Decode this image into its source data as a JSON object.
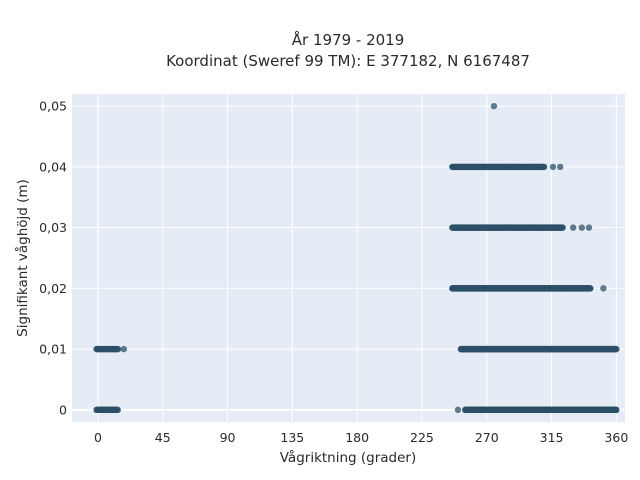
{
  "chart_data": {
    "type": "scatter",
    "title_line1": "År 1979 - 2019",
    "title_line2": "Koordinat (Sweref 99 TM): E 377182, N 6167487",
    "xlabel": "Vågriktning (grader)",
    "ylabel": "Signifikant våghöjd (m)",
    "xlim": [
      -18,
      366
    ],
    "ylim": [
      -0.002,
      0.052
    ],
    "xticks": [
      0,
      45,
      90,
      135,
      180,
      225,
      270,
      315,
      360
    ],
    "xtick_labels": [
      "0",
      "45",
      "90",
      "135",
      "180",
      "225",
      "270",
      "315",
      "360"
    ],
    "yticks": [
      0,
      0.01,
      0.02,
      0.03,
      0.04,
      0.05
    ],
    "ytick_labels": [
      "0",
      "0,01",
      "0,02",
      "0,03",
      "0,04",
      "0,05"
    ],
    "grid": true,
    "marker_color": "#2e5068",
    "marker_opacity": 0.75,
    "clusters": [
      {
        "y": 0.0,
        "x_from": -1,
        "x_to": 14,
        "step": 0.4
      },
      {
        "y": 0.0,
        "x_from": 255,
        "x_to": 360,
        "step": 0.25
      },
      {
        "y": 0.01,
        "x_from": -1,
        "x_to": 14,
        "step": 0.5
      },
      {
        "y": 0.01,
        "x_from": 252,
        "x_to": 360,
        "step": 0.25
      },
      {
        "y": 0.02,
        "x_from": 246,
        "x_to": 342,
        "step": 0.3
      },
      {
        "y": 0.03,
        "x_from": 246,
        "x_to": 323,
        "step": 0.4
      },
      {
        "y": 0.04,
        "x_from": 246,
        "x_to": 310,
        "step": 0.45
      }
    ],
    "outliers": [
      {
        "x": 18,
        "y": 0.01
      },
      {
        "x": 250,
        "y": 0.0
      },
      {
        "x": 351,
        "y": 0.02
      },
      {
        "x": 330,
        "y": 0.03
      },
      {
        "x": 336,
        "y": 0.03
      },
      {
        "x": 341,
        "y": 0.03
      },
      {
        "x": 316,
        "y": 0.04
      },
      {
        "x": 321,
        "y": 0.04
      },
      {
        "x": 275,
        "y": 0.05
      }
    ]
  }
}
